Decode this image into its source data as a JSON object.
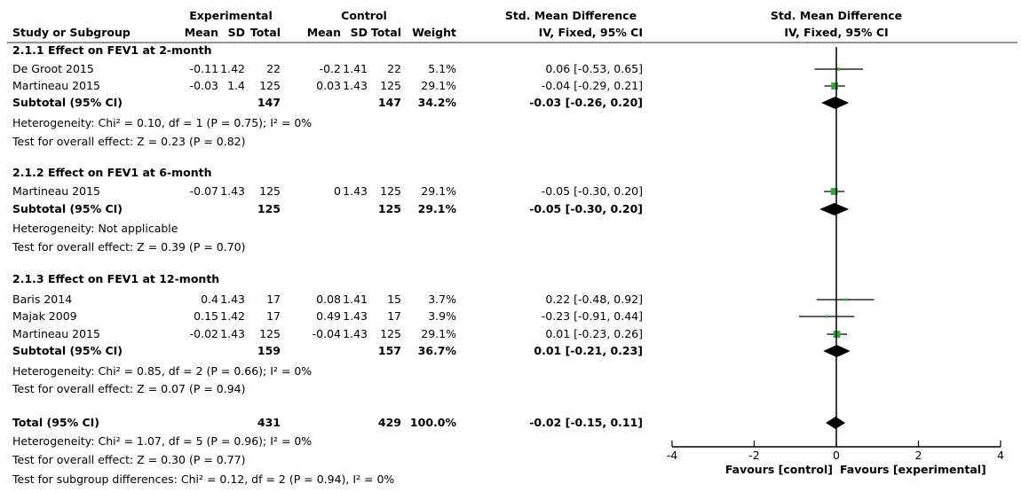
{
  "header": {
    "group_experimental": "Experimental",
    "group_control": "Control",
    "group_smd": "Std. Mean Difference",
    "group_plot": "Std. Mean Difference",
    "col_study": "Study or Subgroup",
    "col_mean": "Mean",
    "col_sd": "SD",
    "col_total": "Total",
    "col_weight": "Weight",
    "col_method": "IV, Fixed, 95% CI",
    "col_plot_method": "IV, Fixed, 95% CI"
  },
  "chart_data": {
    "type": "forest",
    "xlim": [
      -4,
      4
    ],
    "xticks": [
      "-4",
      "-2",
      "0",
      "2",
      "4"
    ],
    "xtick_values": [
      -4,
      -2,
      0,
      2,
      4
    ],
    "favours_left": "Favours [control]",
    "favours_right": "Favours [experimental]",
    "colors": {
      "study_marker": "#2eaa3a",
      "ci_line": "#000000",
      "diamond": "#000000"
    },
    "subgroups": [
      {
        "title": "2.1.1 Effect on FEV1 at 2-month",
        "studies": [
          {
            "name": "De Groot 2015",
            "e_mean": "-0.11",
            "e_sd": "1.42",
            "e_total": "22",
            "c_mean": "-0.2",
            "c_sd": "1.41",
            "c_total": "22",
            "weight": "5.1%",
            "ci_text": "0.06 [-0.53, 0.65]",
            "est": 0.06,
            "lo": -0.53,
            "hi": 0.65,
            "w": 5.1
          },
          {
            "name": "Martineau 2015",
            "e_mean": "-0.03",
            "e_sd": "1.4",
            "e_total": "125",
            "c_mean": "0.03",
            "c_sd": "1.43",
            "c_total": "125",
            "weight": "29.1%",
            "ci_text": "-0.04 [-0.29, 0.21]",
            "est": -0.04,
            "lo": -0.29,
            "hi": 0.21,
            "w": 29.1
          }
        ],
        "subtotal": {
          "label": "Subtotal (95% CI)",
          "e_total": "147",
          "c_total": "147",
          "weight": "34.2%",
          "ci_text": "-0.03 [-0.26, 0.20]",
          "est": -0.03,
          "lo": -0.26,
          "hi": 0.2
        },
        "heterogeneity": "Heterogeneity: Chi² = 0.10, df = 1 (P = 0.75); I² = 0%",
        "overall": "Test for overall effect: Z = 0.23 (P = 0.82)"
      },
      {
        "title": "2.1.2 Effect on FEV1 at 6-month",
        "studies": [
          {
            "name": "Martineau 2015",
            "e_mean": "-0.07",
            "e_sd": "1.43",
            "e_total": "125",
            "c_mean": "0",
            "c_sd": "1.43",
            "c_total": "125",
            "weight": "29.1%",
            "ci_text": "-0.05 [-0.30, 0.20]",
            "est": -0.05,
            "lo": -0.3,
            "hi": 0.2,
            "w": 29.1
          }
        ],
        "subtotal": {
          "label": "Subtotal (95% CI)",
          "e_total": "125",
          "c_total": "125",
          "weight": "29.1%",
          "ci_text": "-0.05 [-0.30, 0.20]",
          "est": -0.05,
          "lo": -0.3,
          "hi": 0.2
        },
        "heterogeneity": "Heterogeneity: Not applicable",
        "overall": "Test for overall effect: Z = 0.39 (P = 0.70)"
      },
      {
        "title": "2.1.3 Effect on FEV1 at 12-month",
        "studies": [
          {
            "name": "Baris 2014",
            "e_mean": "0.4",
            "e_sd": "1.43",
            "e_total": "17",
            "c_mean": "0.08",
            "c_sd": "1.41",
            "c_total": "15",
            "weight": "3.7%",
            "ci_text": "0.22 [-0.48, 0.92]",
            "est": 0.22,
            "lo": -0.48,
            "hi": 0.92,
            "w": 3.7
          },
          {
            "name": "Majak 2009",
            "e_mean": "0.15",
            "e_sd": "1.42",
            "e_total": "17",
            "c_mean": "0.49",
            "c_sd": "1.43",
            "c_total": "17",
            "weight": "3.9%",
            "ci_text": "-0.23 [-0.91, 0.44]",
            "est": -0.23,
            "lo": -0.91,
            "hi": 0.44,
            "w": 3.9
          },
          {
            "name": "Martineau 2015",
            "e_mean": "-0.02",
            "e_sd": "1.43",
            "e_total": "125",
            "c_mean": "-0.04",
            "c_sd": "1.43",
            "c_total": "125",
            "weight": "29.1%",
            "ci_text": "0.01 [-0.23, 0.26]",
            "est": 0.01,
            "lo": -0.23,
            "hi": 0.26,
            "w": 29.1
          }
        ],
        "subtotal": {
          "label": "Subtotal (95% CI)",
          "e_total": "159",
          "c_total": "157",
          "weight": "36.7%",
          "ci_text": "0.01 [-0.21, 0.23]",
          "est": 0.01,
          "lo": -0.21,
          "hi": 0.23
        },
        "heterogeneity": "Heterogeneity: Chi² = 0.85, df = 2 (P = 0.66); I² = 0%",
        "overall": "Test for overall effect: Z = 0.07 (P = 0.94)"
      }
    ],
    "total": {
      "label": "Total (95% CI)",
      "e_total": "431",
      "c_total": "429",
      "weight": "100.0%",
      "ci_text": "-0.02 [-0.15, 0.11]",
      "est": -0.02,
      "lo": -0.15,
      "hi": 0.11,
      "heterogeneity": "Heterogeneity: Chi² = 1.07, df = 5 (P = 0.96); I² = 0%",
      "overall": "Test for overall effect: Z = 0.30 (P = 0.77)",
      "subgroup_diff": "Test for subgroup differences: Chi² = 0.12, df = 2 (P = 0.94), I² = 0%"
    }
  }
}
